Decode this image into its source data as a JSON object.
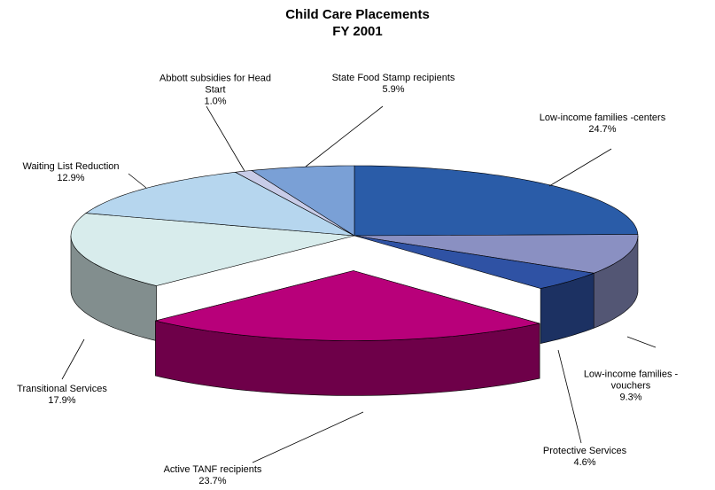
{
  "chart_data": {
    "type": "pie",
    "title": "Child Care Placements",
    "subtitle": "FY 2001",
    "categories": [
      "Low-income families -centers",
      "Low-income families - vouchers",
      "Protective Services",
      "Active TANF recipients",
      "Transitional Services",
      "Waiting List Reduction",
      "Abbott subsidies for Head Start",
      "State Food Stamp recipients"
    ],
    "values": [
      24.7,
      9.3,
      4.6,
      23.7,
      17.9,
      12.9,
      1.0,
      5.9
    ],
    "value_labels": [
      "24.7%",
      "9.3%",
      "4.6%",
      "23.7%",
      "17.9%",
      "12.9%",
      "1.0%",
      "5.9%"
    ],
    "colors": [
      "#2a5ca8",
      "#8a90c2",
      "#2f52a4",
      "#b8007a",
      "#d8ecec",
      "#b6d6ee",
      "#c8cce8",
      "#7aa0d6"
    ],
    "explode": [
      false,
      false,
      false,
      true,
      false,
      false,
      false,
      false
    ]
  }
}
